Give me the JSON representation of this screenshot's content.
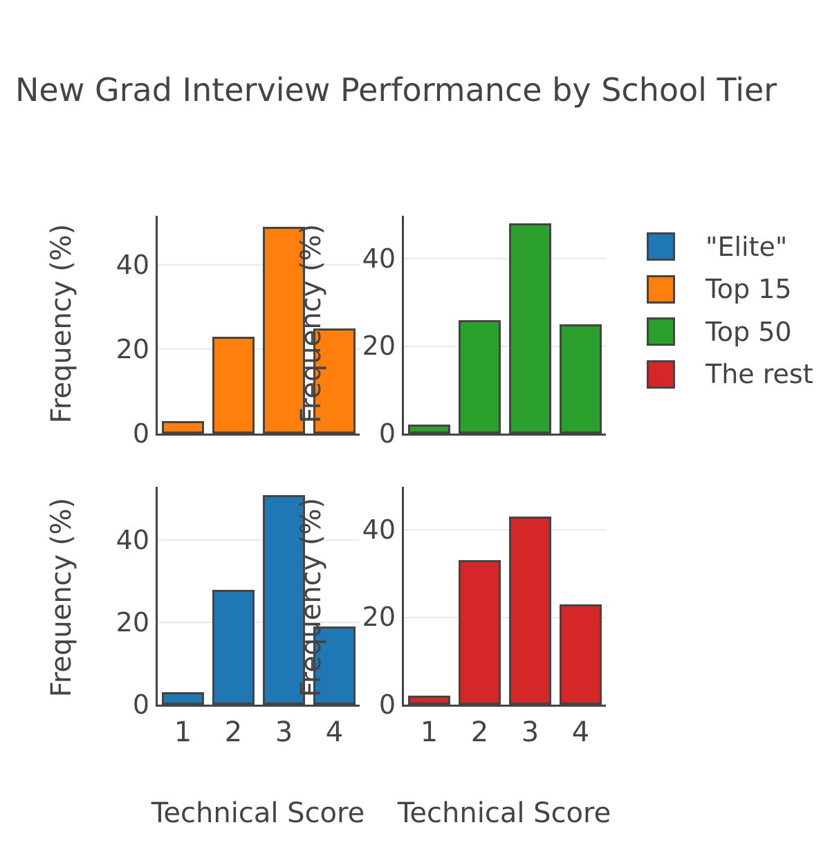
{
  "title": "New Grad Interview Performance by School Tier",
  "axes": {
    "y_title": "Frequency (%)",
    "x_title": "Technical Score",
    "y_tick_labels": [
      "0",
      "20",
      "40"
    ],
    "x_tick_labels": [
      "1",
      "2",
      "3",
      "4"
    ]
  },
  "legend": {
    "position": "top-right",
    "items": [
      {
        "label": "\"Elite\"",
        "color": "#1f77b4"
      },
      {
        "label": "Top 15",
        "color": "#ff7f0e"
      },
      {
        "label": "Top 50",
        "color": "#2ca02c"
      },
      {
        "label": "The rest",
        "color": "#d62728"
      }
    ]
  },
  "colors": {
    "text": "#444444",
    "axis_line": "#444444",
    "bar_outline": "#444444",
    "gridline": "#e8e8e8",
    "background": "#ffffff"
  },
  "chart_data": [
    {
      "type": "bar",
      "subplot": "top-left",
      "series": "Top 15",
      "color": "#ff7f0e",
      "x": [
        1,
        2,
        3,
        4
      ],
      "values": [
        3,
        23,
        49,
        25
      ],
      "xlabel": "Technical Score",
      "ylabel": "Frequency (%)",
      "yticks": [
        0,
        20,
        40
      ],
      "ylim": [
        0,
        51.7
      ],
      "grid": "horizontal",
      "show_x_ticks": false
    },
    {
      "type": "bar",
      "subplot": "top-right",
      "series": "Top 50",
      "color": "#2ca02c",
      "x": [
        1,
        2,
        3,
        4
      ],
      "values": [
        2,
        26,
        48,
        25
      ],
      "xlabel": "Technical Score",
      "ylabel": "Frequency (%)",
      "yticks": [
        0,
        20,
        40
      ],
      "ylim": [
        0,
        49.8
      ],
      "grid": "horizontal",
      "show_x_ticks": false
    },
    {
      "type": "bar",
      "subplot": "bottom-left",
      "series": "\"Elite\"",
      "color": "#1f77b4",
      "x": [
        1,
        2,
        3,
        4
      ],
      "values": [
        3,
        28,
        51,
        19
      ],
      "xlabel": "Technical Score",
      "ylabel": "Frequency (%)",
      "yticks": [
        0,
        20,
        40
      ],
      "ylim": [
        0,
        53.0
      ],
      "grid": "horizontal",
      "show_x_ticks": true
    },
    {
      "type": "bar",
      "subplot": "bottom-right",
      "series": "The rest",
      "color": "#d62728",
      "x": [
        1,
        2,
        3,
        4
      ],
      "values": [
        2,
        33,
        43,
        23
      ],
      "xlabel": "Technical Score",
      "ylabel": "Frequency (%)",
      "yticks": [
        0,
        20,
        40
      ],
      "ylim": [
        0,
        49.8
      ],
      "grid": "horizontal",
      "show_x_ticks": true
    }
  ]
}
